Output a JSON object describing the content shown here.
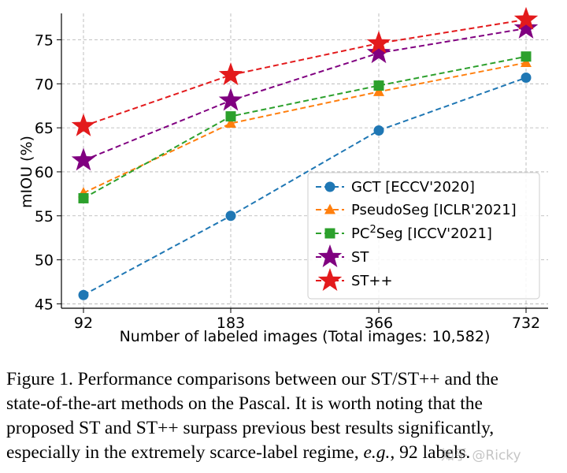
{
  "chart_data": {
    "type": "line",
    "categories": [
      "92",
      "183",
      "366",
      "732"
    ],
    "xlabel": "Number of labeled images (Total images: 10,582)",
    "ylabel": "mIOU (%)",
    "ylim": [
      44.5,
      78
    ],
    "yticks": [
      45,
      50,
      55,
      60,
      65,
      70,
      75
    ],
    "grid": true,
    "legend_position": "center-right",
    "series": [
      {
        "name": "GCT [ECCV'2020]",
        "values": [
          46.0,
          55.0,
          64.7,
          70.7
        ],
        "color": "#1f77b4",
        "marker": "circle"
      },
      {
        "name": "PseudoSeg [ICLR'2021]",
        "values": [
          57.6,
          65.5,
          69.1,
          72.4
        ],
        "color": "#ff7f0e",
        "marker": "triangle"
      },
      {
        "name": "PC2Seg [ICCV'2021]",
        "values": [
          57.0,
          66.3,
          69.8,
          73.1
        ],
        "color": "#2ca02c",
        "marker": "square"
      },
      {
        "name": "ST",
        "values": [
          61.3,
          68.1,
          73.5,
          76.3
        ],
        "color": "#800080",
        "marker": "star"
      },
      {
        "name": "ST++",
        "values": [
          65.2,
          71.0,
          74.6,
          77.3
        ],
        "color": "#e31a1c",
        "marker": "star"
      }
    ],
    "legend": {
      "gct": "GCT [ECCV'2020]",
      "pseudoseg": "PseudoSeg [ICLR'2021]",
      "pc2seg_prefix": "PC",
      "pc2seg_sup": "2",
      "pc2seg_suffix": "Seg [ICCV'2021]",
      "st": "ST",
      "stpp": "ST++"
    }
  },
  "caption": {
    "line1": "Figure 1. Performance comparisons between our ST/ST++ and the",
    "line2": "state-of-the-art methods on the Pascal. It is worth noting that the",
    "line3": "proposed ST and ST++ surpass previous best results significantly,",
    "line4_a": "especially in the extremely scarce-label regime, ",
    "line4_em": "e.g.",
    "line4_b": ", 92 labels."
  },
  "watermark": "知乎 @Ricky"
}
